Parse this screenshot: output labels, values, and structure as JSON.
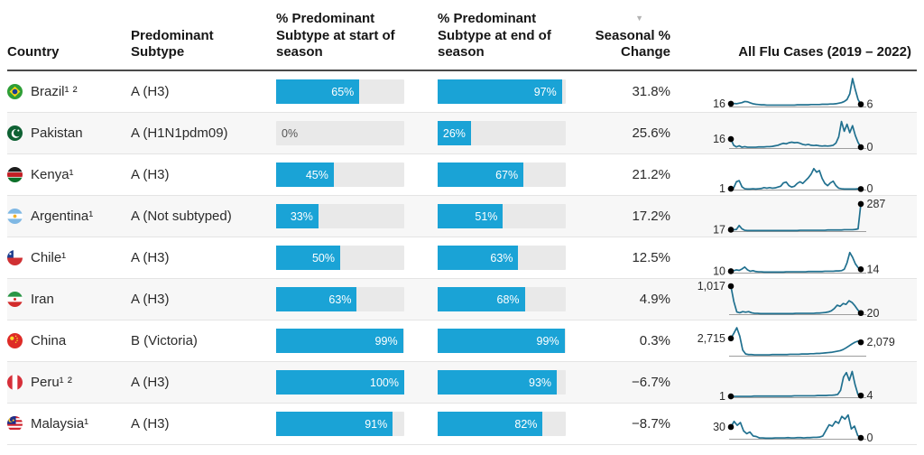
{
  "colors": {
    "bar_fill": "#1aa3d6",
    "bar_track": "#e9e9e9",
    "spark_line": "#20708f",
    "spark_baseline": "#9e9e9e",
    "spark_dot": "#000000",
    "row_alt_bg": "#f7f7f7",
    "header_rule": "#4a4a4a"
  },
  "header": {
    "country": "Country",
    "subtype": "Predominant Subtype",
    "start": "% Predominant Subtype at start of season",
    "end": "% Predominant Subtype at end of season",
    "change": "Seasonal % Change",
    "spark": "All Flu Cases (2019 – 2022)",
    "sort_icon": "▼"
  },
  "chart_data": {
    "type": "table",
    "columns": [
      "Country",
      "Predominant Subtype",
      "% Predominant Subtype at start of season",
      "% Predominant Subtype at end of season",
      "Seasonal % Change",
      "All Flu Cases (2019 – 2022)"
    ],
    "sort": {
      "column": "Seasonal % Change",
      "direction": "descending"
    },
    "bar_range": [
      0,
      100
    ],
    "rows": [
      {
        "country": "Brazil¹ ²",
        "flag": "brazil",
        "subtype": "A (H3)",
        "start_pct": 65,
        "end_pct": 97,
        "seasonal_change": "31.8%",
        "spark": {
          "start_label": "16",
          "end_label": "6",
          "norm_values": [
            0.1,
            0.11,
            0.1,
            0.12,
            0.14,
            0.18,
            0.17,
            0.13,
            0.1,
            0.08,
            0.07,
            0.06,
            0.06,
            0.05,
            0.05,
            0.05,
            0.05,
            0.05,
            0.05,
            0.05,
            0.05,
            0.05,
            0.05,
            0.05,
            0.06,
            0.06,
            0.06,
            0.06,
            0.06,
            0.07,
            0.07,
            0.07,
            0.07,
            0.08,
            0.08,
            0.08,
            0.09,
            0.09,
            0.1,
            0.12,
            0.14,
            0.18,
            0.25,
            0.45,
            1.0,
            0.6,
            0.25,
            0.08
          ]
        }
      },
      {
        "country": "Pakistan",
        "flag": "pakistan",
        "subtype": "A (H1N1pdm09)",
        "start_pct": 0,
        "end_pct": 26,
        "seasonal_change": "25.6%",
        "spark": {
          "start_label": "16",
          "end_label": "0",
          "norm_values": [
            0.32,
            0.1,
            0.04,
            0.08,
            0.03,
            0.05,
            0.03,
            0.03,
            0.03,
            0.03,
            0.04,
            0.04,
            0.04,
            0.05,
            0.05,
            0.06,
            0.08,
            0.1,
            0.14,
            0.17,
            0.15,
            0.19,
            0.21,
            0.19,
            0.2,
            0.17,
            0.13,
            0.11,
            0.13,
            0.1,
            0.09,
            0.1,
            0.08,
            0.07,
            0.08,
            0.07,
            0.08,
            0.1,
            0.18,
            0.4,
            0.95,
            0.6,
            0.85,
            0.55,
            0.8,
            0.45,
            0.2,
            0.03
          ]
        }
      },
      {
        "country": "Kenya¹",
        "flag": "kenya",
        "subtype": "A (H3)",
        "start_pct": 45,
        "end_pct": 67,
        "seasonal_change": "21.2%",
        "spark": {
          "start_label": "1",
          "end_label": "0",
          "norm_values": [
            0.03,
            0.06,
            0.28,
            0.32,
            0.1,
            0.03,
            0.02,
            0.02,
            0.03,
            0.02,
            0.03,
            0.04,
            0.07,
            0.05,
            0.07,
            0.05,
            0.06,
            0.09,
            0.12,
            0.24,
            0.27,
            0.14,
            0.09,
            0.12,
            0.22,
            0.28,
            0.22,
            0.32,
            0.42,
            0.55,
            0.75,
            0.62,
            0.68,
            0.4,
            0.22,
            0.14,
            0.24,
            0.3,
            0.14,
            0.05,
            0.03,
            0.02,
            0.02,
            0.02,
            0.02,
            0.02,
            0.03,
            0.02
          ]
        }
      },
      {
        "country": "Argentina¹",
        "flag": "argentina",
        "subtype": "A (Not subtyped)",
        "start_pct": 33,
        "end_pct": 51,
        "seasonal_change": "17.2%",
        "spark": {
          "start_label": "17",
          "end_label": "287",
          "norm_values": [
            0.05,
            0.05,
            0.06,
            0.2,
            0.08,
            0.03,
            0.02,
            0.02,
            0.02,
            0.02,
            0.02,
            0.02,
            0.02,
            0.02,
            0.02,
            0.02,
            0.02,
            0.02,
            0.02,
            0.02,
            0.02,
            0.02,
            0.02,
            0.02,
            0.02,
            0.03,
            0.03,
            0.03,
            0.03,
            0.03,
            0.03,
            0.03,
            0.03,
            0.03,
            0.03,
            0.04,
            0.04,
            0.04,
            0.04,
            0.04,
            0.04,
            0.05,
            0.05,
            0.05,
            0.05,
            0.06,
            0.08,
            0.97
          ]
        }
      },
      {
        "country": "Chile¹",
        "flag": "chile",
        "subtype": "A (H3)",
        "start_pct": 50,
        "end_pct": 63,
        "seasonal_change": "12.5%",
        "spark": {
          "start_label": "10",
          "end_label": "14",
          "norm_values": [
            0.05,
            0.07,
            0.1,
            0.08,
            0.13,
            0.2,
            0.1,
            0.05,
            0.07,
            0.04,
            0.03,
            0.03,
            0.02,
            0.02,
            0.02,
            0.02,
            0.02,
            0.02,
            0.02,
            0.02,
            0.03,
            0.03,
            0.03,
            0.03,
            0.03,
            0.03,
            0.03,
            0.03,
            0.04,
            0.04,
            0.04,
            0.04,
            0.04,
            0.04,
            0.05,
            0.05,
            0.05,
            0.05,
            0.06,
            0.06,
            0.07,
            0.12,
            0.35,
            0.72,
            0.55,
            0.32,
            0.18,
            0.12
          ]
        }
      },
      {
        "country": "Iran",
        "flag": "iran",
        "subtype": "A (H3)",
        "start_pct": 63,
        "end_pct": 68,
        "seasonal_change": "4.9%",
        "spark": {
          "start_label": "1,017",
          "end_label": "20",
          "norm_values": [
            1.0,
            0.45,
            0.08,
            0.05,
            0.09,
            0.07,
            0.09,
            0.05,
            0.03,
            0.03,
            0.02,
            0.02,
            0.02,
            0.02,
            0.02,
            0.02,
            0.02,
            0.02,
            0.02,
            0.02,
            0.02,
            0.02,
            0.03,
            0.03,
            0.03,
            0.03,
            0.03,
            0.03,
            0.03,
            0.04,
            0.04,
            0.05,
            0.06,
            0.08,
            0.12,
            0.2,
            0.32,
            0.28,
            0.38,
            0.35,
            0.48,
            0.42,
            0.3,
            0.15,
            0.04
          ]
        }
      },
      {
        "country": "China",
        "flag": "china",
        "subtype": "B (Victoria)",
        "start_pct": 99,
        "end_pct": 99,
        "seasonal_change": "0.3%",
        "spark": {
          "start_label": "2,715",
          "end_label": "2,079",
          "norm_values": [
            0.62,
            0.8,
            1.0,
            0.7,
            0.2,
            0.06,
            0.04,
            0.04,
            0.03,
            0.03,
            0.03,
            0.03,
            0.03,
            0.03,
            0.04,
            0.04,
            0.04,
            0.04,
            0.04,
            0.04,
            0.05,
            0.05,
            0.05,
            0.05,
            0.06,
            0.06,
            0.06,
            0.07,
            0.07,
            0.08,
            0.08,
            0.09,
            0.1,
            0.11,
            0.12,
            0.14,
            0.16,
            0.18,
            0.22,
            0.28,
            0.35,
            0.42,
            0.48,
            0.52,
            0.48
          ]
        }
      },
      {
        "country": "Peru¹ ²",
        "flag": "peru",
        "subtype": "A (H3)",
        "start_pct": 100,
        "end_pct": 93,
        "seasonal_change": "−6.7%",
        "spark": {
          "start_label": "1",
          "end_label": "4",
          "norm_values": [
            0.03,
            0.03,
            0.03,
            0.03,
            0.03,
            0.03,
            0.03,
            0.03,
            0.04,
            0.04,
            0.04,
            0.04,
            0.04,
            0.04,
            0.04,
            0.04,
            0.04,
            0.04,
            0.04,
            0.04,
            0.04,
            0.04,
            0.05,
            0.05,
            0.05,
            0.05,
            0.05,
            0.05,
            0.05,
            0.05,
            0.06,
            0.06,
            0.06,
            0.06,
            0.07,
            0.07,
            0.08,
            0.1,
            0.25,
            0.72,
            0.88,
            0.6,
            0.92,
            0.45,
            0.1,
            0.06
          ]
        }
      },
      {
        "country": "Malaysia¹",
        "flag": "malaysia",
        "subtype": "A (H3)",
        "start_pct": 91,
        "end_pct": 82,
        "seasonal_change": "−8.7%",
        "spark": {
          "start_label": "30",
          "end_label": "0",
          "norm_values": [
            0.42,
            0.62,
            0.48,
            0.58,
            0.28,
            0.18,
            0.24,
            0.1,
            0.08,
            0.03,
            0.03,
            0.02,
            0.02,
            0.02,
            0.03,
            0.03,
            0.03,
            0.03,
            0.04,
            0.03,
            0.03,
            0.04,
            0.04,
            0.03,
            0.04,
            0.04,
            0.05,
            0.05,
            0.06,
            0.1,
            0.3,
            0.5,
            0.45,
            0.62,
            0.55,
            0.8,
            0.7,
            0.85,
            0.35,
            0.45,
            0.12,
            0.03
          ]
        }
      }
    ]
  }
}
